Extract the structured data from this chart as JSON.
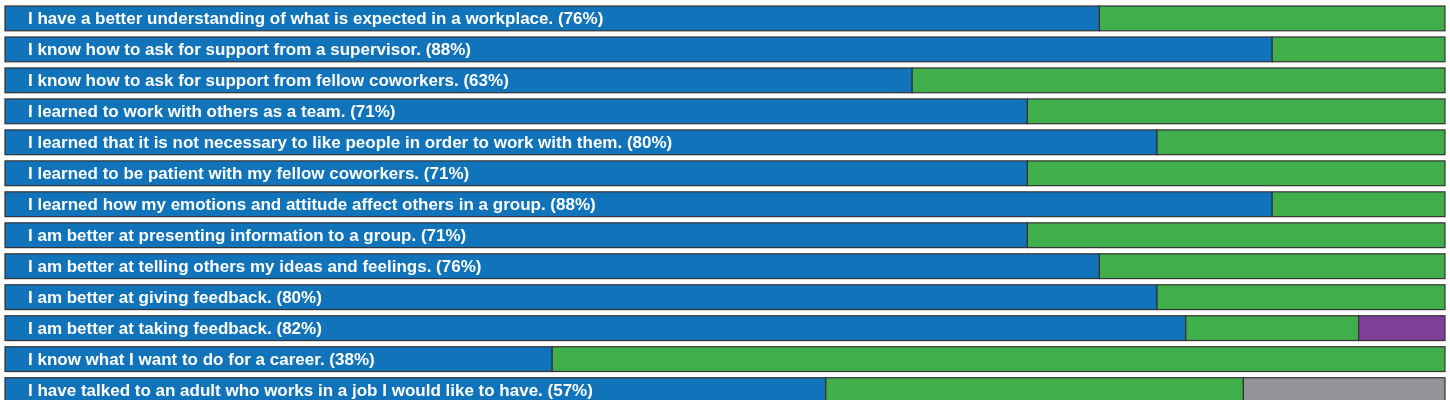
{
  "chart_data": {
    "type": "bar",
    "orientation": "horizontal",
    "stacked": true,
    "xlim": [
      0,
      100
    ],
    "categories": [
      "I have a better understanding of what is expected in a workplace.",
      "I know how to ask for support from a supervisor.",
      "I know how to ask for support from fellow coworkers.",
      "I learned to work with others as a team.",
      "I learned that it is not necessary to like people in order to work with them.",
      "I learned to be patient with my fellow coworkers.",
      "I learned how my emotions and attitude affect others in a group.",
      "I am better at presenting information to a group.",
      "I am better at telling others my ideas and feelings.",
      "I am better at giving feedback.",
      "I am better at taking feedback.",
      "I know what I want to do for a career.",
      "I have talked to an adult who works in a job I would like to have."
    ],
    "series": [
      {
        "color": "#1174bb",
        "values": [
          76,
          88,
          63,
          71,
          80,
          71,
          88,
          71,
          76,
          80,
          82,
          38,
          57
        ],
        "value_labels": [
          "(76%)",
          "(88%)",
          "(63%)",
          "(71%)",
          "(80%)",
          "(71%)",
          "(88%)",
          "(71%)",
          "(76%)",
          "(80%)",
          "(82%)",
          "(38%)",
          "(57%)"
        ]
      },
      {
        "color": "#40ae4a",
        "values": [
          24,
          12,
          37,
          29,
          20,
          29,
          12,
          29,
          24,
          20,
          12,
          62,
          29
        ]
      },
      {
        "color": "#7e3f98",
        "values": [
          null,
          null,
          null,
          null,
          null,
          null,
          null,
          null,
          null,
          null,
          6,
          null,
          null
        ]
      },
      {
        "color": "#939598",
        "values": [
          null,
          null,
          null,
          null,
          null,
          null,
          null,
          null,
          null,
          null,
          null,
          null,
          14
        ]
      }
    ]
  }
}
